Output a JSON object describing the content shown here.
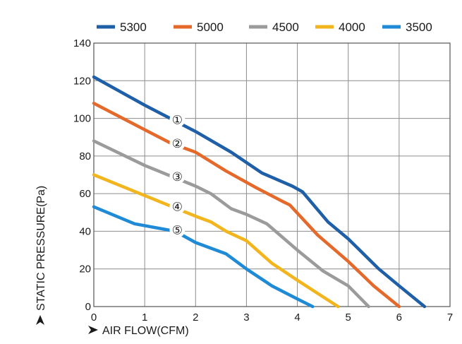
{
  "chart_data": {
    "type": "line",
    "xlabel": "AIR FLOW(CFM)",
    "ylabel": "STATIC PRESSURE(Pa)",
    "xlim": [
      0,
      7
    ],
    "ylim": [
      0,
      140
    ],
    "x_ticks": [
      "0",
      "1",
      "2",
      "3",
      "4",
      "5",
      "6",
      "7"
    ],
    "y_ticks": [
      "0",
      "20",
      "40",
      "60",
      "80",
      "100",
      "120",
      "140"
    ],
    "grid": true,
    "legend_position": "top",
    "series": [
      {
        "name": "5300",
        "color": "#1f5fa8",
        "marker": "①",
        "points": [
          [
            0,
            122
          ],
          [
            1,
            107
          ],
          [
            2,
            93
          ],
          [
            2.7,
            82
          ],
          [
            3.3,
            71
          ],
          [
            3.9,
            64
          ],
          [
            4.1,
            61
          ],
          [
            4.6,
            45
          ],
          [
            5,
            36
          ],
          [
            5.6,
            20
          ],
          [
            6,
            11
          ],
          [
            6.5,
            0
          ]
        ]
      },
      {
        "name": "5000",
        "color": "#e4692a",
        "marker": "②",
        "points": [
          [
            0,
            108
          ],
          [
            1,
            94
          ],
          [
            1.5,
            87
          ],
          [
            2,
            82
          ],
          [
            2.6,
            72
          ],
          [
            3.2,
            63
          ],
          [
            3.7,
            56
          ],
          [
            3.85,
            54
          ],
          [
            4.4,
            38
          ],
          [
            5,
            24
          ],
          [
            5.5,
            11
          ],
          [
            6,
            0
          ]
        ]
      },
      {
        "name": "4500",
        "color": "#9b9b9b",
        "marker": "③",
        "points": [
          [
            0,
            88
          ],
          [
            1,
            75
          ],
          [
            2,
            64
          ],
          [
            2.3,
            60
          ],
          [
            2.7,
            52
          ],
          [
            3,
            49
          ],
          [
            3.4,
            44
          ],
          [
            4,
            30
          ],
          [
            4.5,
            19
          ],
          [
            5,
            11
          ],
          [
            5.4,
            0
          ]
        ]
      },
      {
        "name": "4000",
        "color": "#f2b51d",
        "marker": "④",
        "points": [
          [
            0,
            70
          ],
          [
            1,
            59
          ],
          [
            2,
            48
          ],
          [
            2.3,
            45
          ],
          [
            2.6,
            40
          ],
          [
            3,
            35
          ],
          [
            3.5,
            23
          ],
          [
            4,
            14
          ],
          [
            4.4,
            7
          ],
          [
            4.8,
            0
          ]
        ]
      },
      {
        "name": "3500",
        "color": "#1f8ad5",
        "marker": "⑤",
        "points": [
          [
            0,
            53
          ],
          [
            0.8,
            44
          ],
          [
            1.6,
            40
          ],
          [
            2,
            34
          ],
          [
            2.6,
            28
          ],
          [
            3,
            20
          ],
          [
            3.5,
            11
          ],
          [
            4,
            4
          ],
          [
            4.3,
            0
          ]
        ]
      }
    ]
  }
}
